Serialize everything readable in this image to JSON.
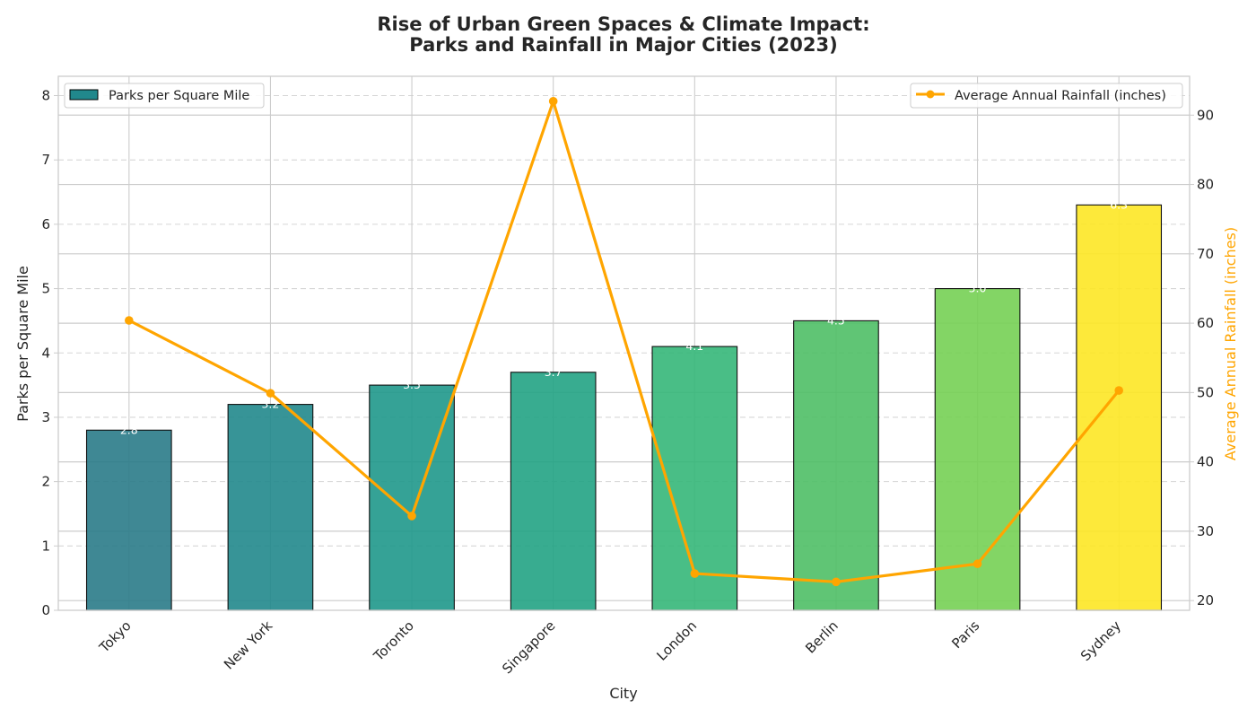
{
  "chart_data": {
    "type": "bar+line",
    "title_line1": "Rise of Urban Green Spaces & Climate Impact:",
    "title_line2": "Parks and Rainfall in Major Cities (2023)",
    "xlabel": "City",
    "ylabel_left": "Parks per Square Mile",
    "ylabel_right": "Average Annual Rainfall (inches)",
    "categories": [
      "Tokyo",
      "New York",
      "Toronto",
      "Singapore",
      "London",
      "Berlin",
      "Paris",
      "Sydney"
    ],
    "series": [
      {
        "name": "Parks per Square Mile",
        "type": "bar",
        "axis": "left",
        "values": [
          2.8,
          3.2,
          3.5,
          3.7,
          4.1,
          4.5,
          5.0,
          6.3
        ],
        "value_labels": [
          "2.8",
          "3.2",
          "3.5",
          "3.7",
          "4.1",
          "4.5",
          "5.0",
          "6.3"
        ],
        "colors": [
          "#2a7b88",
          "#21888c",
          "#1f988b",
          "#22a384",
          "#35b779",
          "#4fbf66",
          "#76d054",
          "#fde725"
        ]
      },
      {
        "name": "Average Annual Rainfall (inches)",
        "type": "line",
        "axis": "right",
        "values": [
          60.4,
          49.9,
          32.2,
          92.0,
          23.9,
          22.7,
          25.3,
          50.3
        ],
        "color": "#ffa500"
      }
    ],
    "ylim_left": [
      0,
      8.3
    ],
    "yticks_left": [
      "0",
      "1",
      "2",
      "3",
      "4",
      "5",
      "6",
      "7",
      "8"
    ],
    "ylim_right": [
      18.6,
      95.6
    ],
    "yticks_right": [
      "20",
      "30",
      "40",
      "50",
      "60",
      "70",
      "80",
      "90"
    ],
    "grid": true,
    "legend_left": "top-left",
    "legend_right": "top-right"
  }
}
